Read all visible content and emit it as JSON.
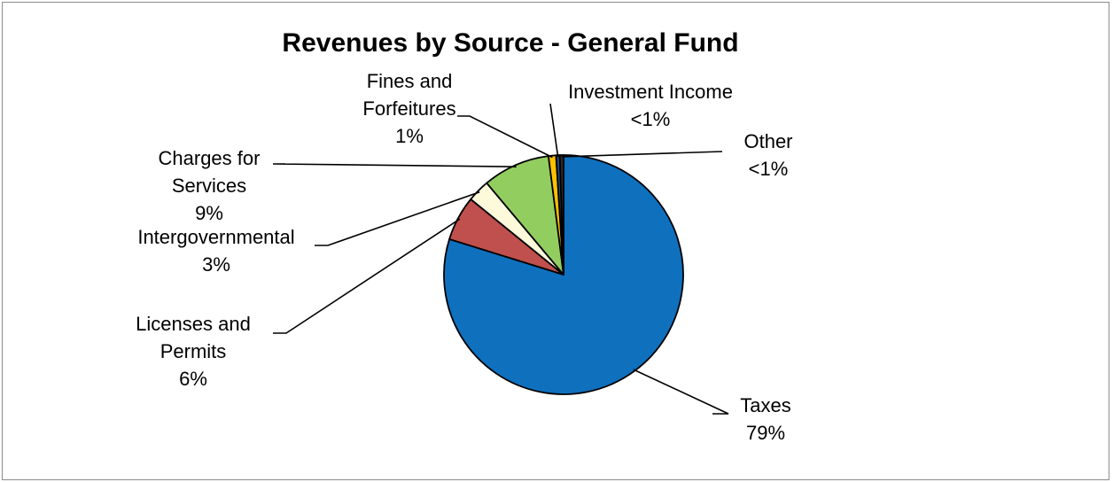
{
  "chart_data": {
    "type": "pie",
    "title": "Revenues by Source - General Fund",
    "categories": [
      "Taxes",
      "Licenses and Permits",
      "Intergovernmental",
      "Charges for Services",
      "Fines and Forfeitures",
      "Investment Income",
      "Other"
    ],
    "values": [
      79,
      6,
      3,
      9,
      1,
      0.5,
      0.5
    ],
    "value_labels": [
      "79%",
      "6%",
      "3%",
      "9%",
      "1%",
      "<1%",
      "<1%"
    ],
    "colors": [
      "#0f70be",
      "#c0504d",
      "#fdfadb",
      "#92cd60",
      "#ffc000",
      "#1f497d",
      "#2b2b2b"
    ],
    "start_angle_deg": 0,
    "direction": "clockwise",
    "legend": "none"
  }
}
